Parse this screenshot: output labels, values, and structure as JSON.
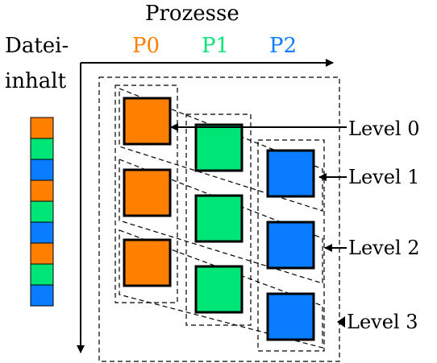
{
  "diagram": {
    "title": "Prozesse",
    "file_label_line1": "Datei-",
    "file_label_line2": "inhalt",
    "processes": [
      {
        "label": "P0",
        "color": "#ff7f00"
      },
      {
        "label": "P1",
        "color": "#00e676"
      },
      {
        "label": "P2",
        "color": "#0a7cff"
      }
    ],
    "levels": [
      "Level 0",
      "Level 1",
      "Level 2",
      "Level 3"
    ],
    "file_strip_sequence": [
      "P0",
      "P1",
      "P2",
      "P0",
      "P1",
      "P2",
      "P0",
      "P1",
      "P2"
    ]
  }
}
